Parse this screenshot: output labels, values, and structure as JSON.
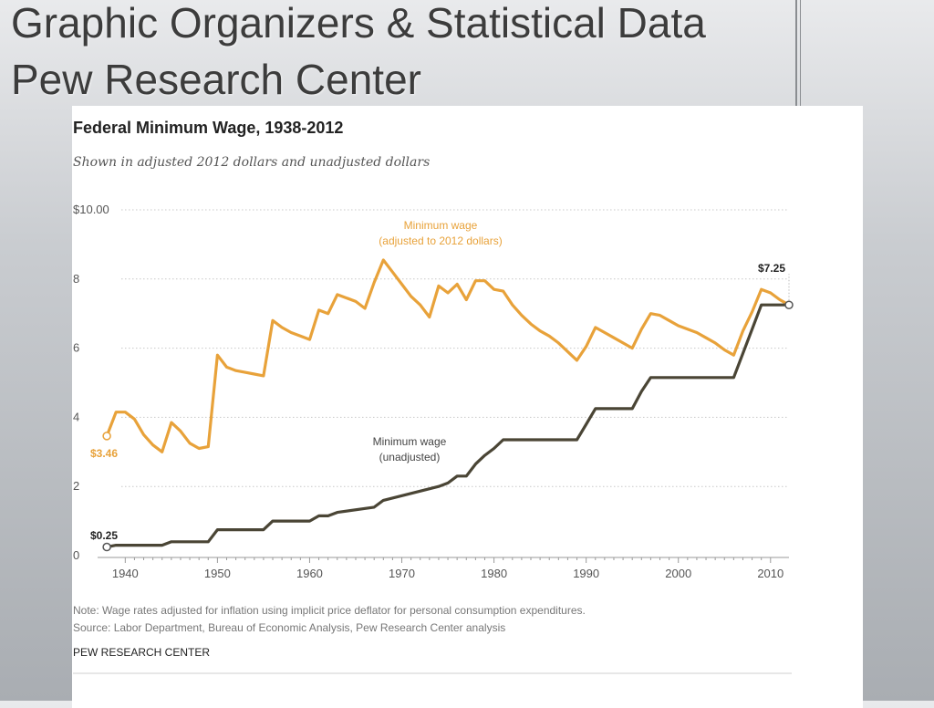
{
  "slide": {
    "title_line1": "Graphic Organizers & Statistical Data",
    "title_line2": "Pew Research Center"
  },
  "colors": {
    "adjusted": "#e8a23a",
    "unadjusted": "#4a4535",
    "grid": "#c8c8c8"
  },
  "footer": {
    "note": "Note: Wage rates adjusted for inflation using implicit price deflator for personal consumption expenditures.",
    "source": "Source: Labor Department, Bureau of Economic Analysis, Pew Research Center analysis",
    "credit": "PEW RESEARCH CENTER"
  },
  "chart_data": {
    "type": "line",
    "title": "Federal Minimum Wage, 1938-2012",
    "subtitle": "Shown in adjusted 2012 dollars and unadjusted dollars",
    "xlim": [
      1937,
      2012
    ],
    "ylim": [
      0,
      10
    ],
    "x_ticks": [
      1940,
      1950,
      1960,
      1970,
      1980,
      1990,
      2000,
      2010
    ],
    "y_ticks": [
      {
        "value": 0,
        "label": "0"
      },
      {
        "value": 2,
        "label": "2"
      },
      {
        "value": 4,
        "label": "4"
      },
      {
        "value": 6,
        "label": "6"
      },
      {
        "value": 8,
        "label": "8"
      },
      {
        "value": 10,
        "label": "$10.00"
      }
    ],
    "grid": "horizontal-dotted",
    "series": [
      {
        "key": "adjusted",
        "label_lines": [
          "Minimum wage",
          "(adjusted to 2012 dollars)"
        ],
        "start_label": "$3.46",
        "points": [
          [
            1938,
            3.46
          ],
          [
            1939,
            4.15
          ],
          [
            1940,
            4.15
          ],
          [
            1941,
            3.95
          ],
          [
            1942,
            3.5
          ],
          [
            1943,
            3.2
          ],
          [
            1944,
            3.0
          ],
          [
            1945,
            3.85
          ],
          [
            1946,
            3.6
          ],
          [
            1947,
            3.25
          ],
          [
            1948,
            3.1
          ],
          [
            1949,
            3.15
          ],
          [
            1950,
            5.8
          ],
          [
            1951,
            5.45
          ],
          [
            1952,
            5.35
          ],
          [
            1953,
            5.3
          ],
          [
            1954,
            5.25
          ],
          [
            1955,
            5.2
          ],
          [
            1956,
            6.8
          ],
          [
            1957,
            6.6
          ],
          [
            1958,
            6.45
          ],
          [
            1959,
            6.35
          ],
          [
            1960,
            6.25
          ],
          [
            1961,
            7.1
          ],
          [
            1962,
            7.0
          ],
          [
            1963,
            7.55
          ],
          [
            1964,
            7.45
          ],
          [
            1965,
            7.35
          ],
          [
            1966,
            7.15
          ],
          [
            1967,
            7.9
          ],
          [
            1968,
            8.55
          ],
          [
            1969,
            8.2
          ],
          [
            1970,
            7.85
          ],
          [
            1971,
            7.5
          ],
          [
            1972,
            7.25
          ],
          [
            1973,
            6.9
          ],
          [
            1974,
            7.8
          ],
          [
            1975,
            7.6
          ],
          [
            1976,
            7.85
          ],
          [
            1977,
            7.4
          ],
          [
            1978,
            7.95
          ],
          [
            1979,
            7.95
          ],
          [
            1980,
            7.7
          ],
          [
            1981,
            7.65
          ],
          [
            1982,
            7.25
          ],
          [
            1983,
            6.95
          ],
          [
            1984,
            6.7
          ],
          [
            1985,
            6.5
          ],
          [
            1986,
            6.35
          ],
          [
            1987,
            6.15
          ],
          [
            1988,
            5.9
          ],
          [
            1989,
            5.65
          ],
          [
            1990,
            6.05
          ],
          [
            1991,
            6.6
          ],
          [
            1992,
            6.45
          ],
          [
            1993,
            6.3
          ],
          [
            1994,
            6.15
          ],
          [
            1995,
            6.0
          ],
          [
            1996,
            6.55
          ],
          [
            1997,
            7.0
          ],
          [
            1998,
            6.95
          ],
          [
            1999,
            6.8
          ],
          [
            2000,
            6.65
          ],
          [
            2001,
            6.55
          ],
          [
            2002,
            6.45
          ],
          [
            2003,
            6.3
          ],
          [
            2004,
            6.15
          ],
          [
            2005,
            5.95
          ],
          [
            2006,
            5.8
          ],
          [
            2007,
            6.5
          ],
          [
            2008,
            7.05
          ],
          [
            2009,
            7.7
          ],
          [
            2010,
            7.6
          ],
          [
            2011,
            7.4
          ],
          [
            2012,
            7.25
          ]
        ]
      },
      {
        "key": "unadjusted",
        "label_lines": [
          "Minimum wage",
          "(unadjusted)"
        ],
        "start_label": "$0.25",
        "end_label": "$7.25",
        "points": [
          [
            1938,
            0.25
          ],
          [
            1939,
            0.3
          ],
          [
            1944,
            0.3
          ],
          [
            1945,
            0.4
          ],
          [
            1949,
            0.4
          ],
          [
            1950,
            0.75
          ],
          [
            1955,
            0.75
          ],
          [
            1956,
            1.0
          ],
          [
            1960,
            1.0
          ],
          [
            1961,
            1.15
          ],
          [
            1962,
            1.15
          ],
          [
            1963,
            1.25
          ],
          [
            1967,
            1.4
          ],
          [
            1968,
            1.6
          ],
          [
            1974,
            2.0
          ],
          [
            1975,
            2.1
          ],
          [
            1976,
            2.3
          ],
          [
            1977,
            2.3
          ],
          [
            1978,
            2.65
          ],
          [
            1979,
            2.9
          ],
          [
            1980,
            3.1
          ],
          [
            1981,
            3.35
          ],
          [
            1989,
            3.35
          ],
          [
            1990,
            3.8
          ],
          [
            1991,
            4.25
          ],
          [
            1995,
            4.25
          ],
          [
            1996,
            4.75
          ],
          [
            1997,
            5.15
          ],
          [
            2006,
            5.15
          ],
          [
            2007,
            5.85
          ],
          [
            2008,
            6.55
          ],
          [
            2009,
            7.25
          ],
          [
            2012,
            7.25
          ]
        ]
      }
    ]
  }
}
